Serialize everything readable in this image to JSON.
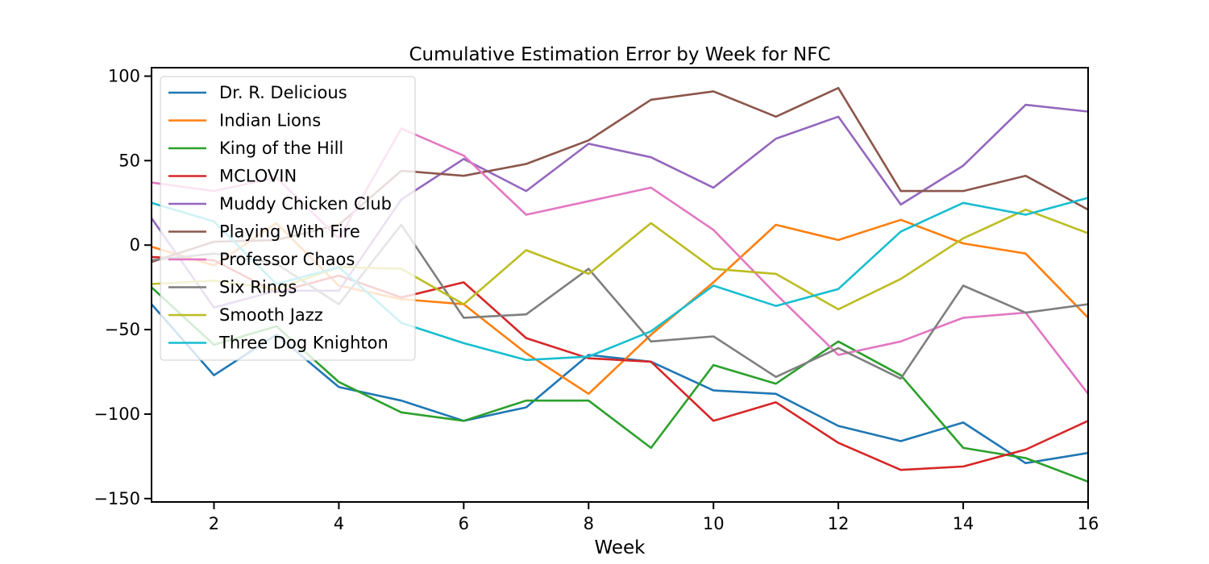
{
  "chart_data": {
    "type": "line",
    "title": "Cumulative Estimation Error by Week for NFC",
    "xlabel": "Week",
    "ylabel": "",
    "xlim": [
      1,
      16
    ],
    "ylim": [
      -152,
      105
    ],
    "xticks": [
      2,
      4,
      6,
      8,
      10,
      12,
      14,
      16
    ],
    "yticks": [
      -150,
      -100,
      -50,
      0,
      50,
      100
    ],
    "ytick_labels": [
      "−150",
      "−100",
      "−50",
      "0",
      "50",
      "100"
    ],
    "grid": false,
    "legend_position": "upper-left",
    "x": [
      1,
      2,
      3,
      4,
      5,
      6,
      7,
      8,
      9,
      10,
      11,
      12,
      13,
      14,
      15,
      16
    ],
    "series": [
      {
        "name": "Dr. R. Delicious",
        "color": "#1f77b4",
        "values": [
          -35,
          -77,
          -53,
          -84,
          -92,
          -104,
          -96,
          -65,
          -69,
          -86,
          -88,
          -107,
          -116,
          -105,
          -129,
          -123
        ]
      },
      {
        "name": "Indian Lions",
        "color": "#ff7f0e",
        "values": [
          -1,
          -12,
          13,
          -24,
          -32,
          -35,
          -64,
          -88,
          -53,
          -22,
          12,
          3,
          15,
          1,
          -5,
          -43
        ]
      },
      {
        "name": "King of the Hill",
        "color": "#2ca02c",
        "values": [
          -25,
          -59,
          -48,
          -81,
          -99,
          -104,
          -92,
          -92,
          -120,
          -71,
          -82,
          -57,
          -77,
          -120,
          -126,
          -140
        ]
      },
      {
        "name": "MCLOVIN",
        "color": "#d62728",
        "values": [
          -7,
          -9,
          -28,
          -18,
          -31,
          -22,
          -55,
          -67,
          -69,
          -104,
          -93,
          -117,
          -133,
          -131,
          -121,
          -104
        ]
      },
      {
        "name": "Muddy Chicken Club",
        "color": "#9467bd",
        "values": [
          16,
          -37,
          -27,
          -27,
          27,
          51,
          32,
          60,
          52,
          34,
          63,
          76,
          24,
          47,
          83,
          79
        ]
      },
      {
        "name": "Playing With Fire",
        "color": "#8c564b",
        "values": [
          -10,
          2,
          3,
          12,
          44,
          41,
          48,
          62,
          86,
          91,
          76,
          93,
          32,
          32,
          41,
          21
        ]
      },
      {
        "name": "Professor Chaos",
        "color": "#e377c2",
        "values": [
          37,
          32,
          40,
          4,
          69,
          53,
          18,
          26,
          34,
          9,
          -29,
          -65,
          -57,
          -43,
          -40,
          -88
        ]
      },
      {
        "name": "Six Rings",
        "color": "#7f7f7f",
        "values": [
          -9,
          -5,
          -11,
          -35,
          12,
          -43,
          -41,
          -14,
          -57,
          -54,
          -78,
          -61,
          -79,
          -24,
          -40,
          -35
        ]
      },
      {
        "name": "Smooth Jazz",
        "color": "#bcbd22",
        "values": [
          -23,
          -21,
          -26,
          -13,
          -14,
          -35,
          -3,
          -17,
          13,
          -14,
          -17,
          -38,
          -20,
          4,
          21,
          7
        ]
      },
      {
        "name": "Three Dog Knighton",
        "color": "#17becf",
        "values": [
          25,
          14,
          -23,
          -13,
          -46,
          -58,
          -68,
          -66,
          -51,
          -24,
          -36,
          -26,
          8,
          25,
          18,
          28
        ]
      }
    ]
  }
}
